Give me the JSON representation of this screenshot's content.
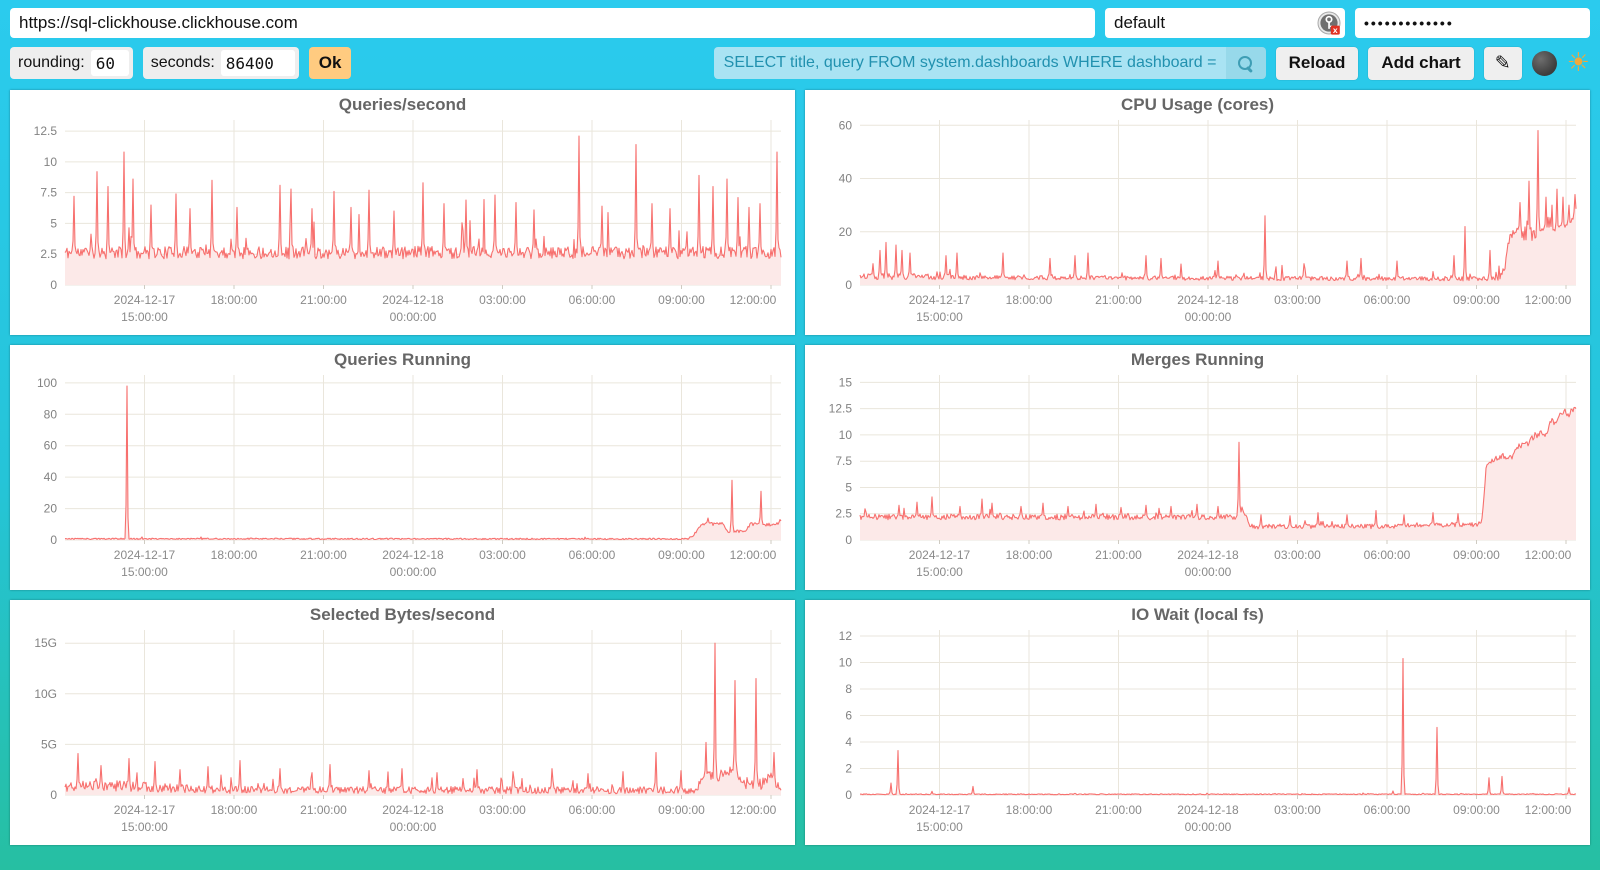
{
  "topbar": {
    "url": "https://sql-clickhouse.clickhouse.com",
    "user": "default",
    "password_masked": "•••••••••••••",
    "user_icon": "key-badge-icon"
  },
  "controls": {
    "rounding_label": "rounding:",
    "rounding_value": "60",
    "seconds_label": "seconds:",
    "seconds_value": "86400",
    "ok_label": "Ok",
    "search_value": "SELECT title, query FROM system.dashboards WHERE dashboard = '",
    "search_icon": "magnifier-icon",
    "reload_label": "Reload",
    "add_chart_label": "Add chart",
    "edit_icon": "✎",
    "dark_toggle_icon": "moon-face-icon",
    "light_toggle_icon": "sun-face-icon"
  },
  "colors": {
    "background_top": "#2BCBEE",
    "background_bottom": "#26BFA2",
    "card_background": "#FFFFFF",
    "ok_button": "#FFCB80",
    "button_background": "#EFEFEF",
    "search_background": "#A9E3F3",
    "search_text": "#2191AF",
    "series_line": "#F7706E",
    "series_fill": "#FCE9E8",
    "title_color": "#666666",
    "axis_text": "#8A8A8A",
    "grid": "#EAE6DC"
  },
  "chart_common": {
    "xticks": [
      {
        "t": 0.111,
        "lines": [
          "2024-12-17",
          "15:00:00"
        ]
      },
      {
        "t": 0.236,
        "lines": [
          "18:00:00"
        ]
      },
      {
        "t": 0.361,
        "lines": [
          "21:00:00"
        ]
      },
      {
        "t": 0.486,
        "lines": [
          "2024-12-18",
          "00:00:00"
        ]
      },
      {
        "t": 0.611,
        "lines": [
          "03:00:00"
        ]
      },
      {
        "t": 0.736,
        "lines": [
          "06:00:00"
        ]
      },
      {
        "t": 0.861,
        "lines": [
          "09:00:00"
        ]
      },
      {
        "t": 0.986,
        "lines": [
          "12:00:00"
        ]
      }
    ]
  },
  "chart_data": [
    {
      "type": "line",
      "title": "Queries/second",
      "ymax": 13.4,
      "ylim": [
        0,
        13.4
      ],
      "yticks": [
        {
          "v": 0,
          "label": "0"
        },
        {
          "v": 2.5,
          "label": "2.5"
        },
        {
          "v": 5,
          "label": "5"
        },
        {
          "v": 7.5,
          "label": "7.5"
        },
        {
          "v": 10,
          "label": "10"
        },
        {
          "v": 12.5,
          "label": "12.5"
        }
      ],
      "series": {
        "seed": 11,
        "min": 1.6,
        "base": [
          [
            0,
            2.55
          ],
          [
            1,
            2.55
          ]
        ],
        "noise": [
          [
            0,
            1.0
          ],
          [
            1,
            1.0
          ]
        ],
        "spike_prob": 0.055,
        "spike_max": 4.8,
        "spikes": [
          [
            0.012,
            7.2
          ],
          [
            0.045,
            9.2
          ],
          [
            0.06,
            8.0
          ],
          [
            0.082,
            10.8
          ],
          [
            0.095,
            8.6
          ],
          [
            0.12,
            6.5
          ],
          [
            0.155,
            7.4
          ],
          [
            0.175,
            6.2
          ],
          [
            0.205,
            8.5
          ],
          [
            0.24,
            6.3
          ],
          [
            0.3,
            8.1
          ],
          [
            0.315,
            7.8
          ],
          [
            0.345,
            6.2
          ],
          [
            0.375,
            7.6
          ],
          [
            0.4,
            6.3
          ],
          [
            0.425,
            7.7
          ],
          [
            0.46,
            6.0
          ],
          [
            0.5,
            8.3
          ],
          [
            0.53,
            6.6
          ],
          [
            0.56,
            6.9
          ],
          [
            0.6,
            7.3
          ],
          [
            0.63,
            6.7
          ],
          [
            0.655,
            6.1
          ],
          [
            0.718,
            12.1
          ],
          [
            0.75,
            6.4
          ],
          [
            0.797,
            11.4
          ],
          [
            0.82,
            6.6
          ],
          [
            0.845,
            6.2
          ],
          [
            0.885,
            8.9
          ],
          [
            0.905,
            8.0
          ],
          [
            0.925,
            8.6
          ],
          [
            0.94,
            7.1
          ],
          [
            0.955,
            6.3
          ],
          [
            0.97,
            6.6
          ],
          [
            0.995,
            10.8
          ]
        ]
      }
    },
    {
      "type": "line",
      "title": "CPU Usage (cores)",
      "ymax": 62,
      "ylim": [
        0,
        62
      ],
      "yticks": [
        {
          "v": 0,
          "label": "0"
        },
        {
          "v": 20,
          "label": "20"
        },
        {
          "v": 40,
          "label": "40"
        },
        {
          "v": 60,
          "label": "60"
        }
      ],
      "series": {
        "seed": 22,
        "min": 0.8,
        "base": [
          [
            0,
            3.2
          ],
          [
            0.2,
            2.6
          ],
          [
            0.55,
            2.4
          ],
          [
            0.89,
            2.2
          ],
          [
            0.9,
            5
          ],
          [
            0.906,
            17
          ],
          [
            0.92,
            20
          ],
          [
            0.935,
            18
          ],
          [
            0.95,
            21
          ],
          [
            0.965,
            19
          ],
          [
            0.98,
            21
          ],
          [
            0.99,
            22
          ],
          [
            1,
            26
          ]
        ],
        "noise": [
          [
            0,
            2.6
          ],
          [
            0.1,
            2.2
          ],
          [
            0.2,
            1.6
          ],
          [
            0.89,
            1.6
          ],
          [
            0.91,
            5
          ],
          [
            1,
            6
          ]
        ],
        "spike_prob": 0.06,
        "spike_max": 7,
        "spikes": [
          [
            0.018,
            8
          ],
          [
            0.028,
            13
          ],
          [
            0.036,
            16
          ],
          [
            0.05,
            15
          ],
          [
            0.058,
            13
          ],
          [
            0.07,
            12
          ],
          [
            0.12,
            11
          ],
          [
            0.135,
            12
          ],
          [
            0.2,
            12
          ],
          [
            0.265,
            10
          ],
          [
            0.3,
            11
          ],
          [
            0.318,
            12
          ],
          [
            0.4,
            11
          ],
          [
            0.42,
            10
          ],
          [
            0.5,
            9
          ],
          [
            0.565,
            26
          ],
          [
            0.62,
            8
          ],
          [
            0.68,
            9
          ],
          [
            0.7,
            10
          ],
          [
            0.75,
            9
          ],
          [
            0.83,
            11
          ],
          [
            0.845,
            22
          ],
          [
            0.88,
            13
          ],
          [
            0.922,
            31
          ],
          [
            0.934,
            39
          ],
          [
            0.947,
            58
          ],
          [
            0.958,
            33
          ],
          [
            0.966,
            30
          ],
          [
            0.974,
            36
          ],
          [
            0.982,
            33
          ],
          [
            0.99,
            30
          ],
          [
            0.999,
            34
          ]
        ]
      }
    },
    {
      "type": "line",
      "title": "Queries Running",
      "ymax": 105,
      "ylim": [
        0,
        105
      ],
      "yticks": [
        {
          "v": 0,
          "label": "0"
        },
        {
          "v": 20,
          "label": "20"
        },
        {
          "v": 40,
          "label": "40"
        },
        {
          "v": 60,
          "label": "60"
        },
        {
          "v": 80,
          "label": "80"
        },
        {
          "v": 100,
          "label": "100"
        }
      ],
      "series": {
        "seed": 33,
        "min": 0.15,
        "base": [
          [
            0,
            0.7
          ],
          [
            0.87,
            0.6
          ],
          [
            0.878,
            3
          ],
          [
            0.887,
            9
          ],
          [
            0.895,
            11
          ],
          [
            0.905,
            10
          ],
          [
            0.917,
            11
          ],
          [
            0.925,
            5
          ],
          [
            0.94,
            5.5
          ],
          [
            0.95,
            6
          ],
          [
            0.958,
            10
          ],
          [
            0.97,
            10
          ],
          [
            0.98,
            9.5
          ],
          [
            0.99,
            10
          ],
          [
            1,
            11
          ]
        ],
        "noise": [
          [
            0,
            0.9
          ],
          [
            0.87,
            0.9
          ],
          [
            0.89,
            2
          ],
          [
            1,
            2
          ]
        ],
        "spike_prob": 0.01,
        "spike_max": 1.5,
        "spikes": [
          [
            0.087,
            98
          ],
          [
            0.898,
            14
          ],
          [
            0.932,
            38
          ],
          [
            0.972,
            31
          ],
          [
            0.998,
            13
          ]
        ]
      }
    },
    {
      "type": "line",
      "title": "Merges Running",
      "ymax": 15.7,
      "ylim": [
        0,
        15.7
      ],
      "yticks": [
        {
          "v": 0,
          "label": "0"
        },
        {
          "v": 2.5,
          "label": "2.5"
        },
        {
          "v": 5,
          "label": "5"
        },
        {
          "v": 7.5,
          "label": "7.5"
        },
        {
          "v": 10,
          "label": "10"
        },
        {
          "v": 12.5,
          "label": "12.5"
        },
        {
          "v": 15,
          "label": "15"
        }
      ],
      "series": {
        "seed": 44,
        "min": 0.9,
        "base": [
          [
            0,
            2.15
          ],
          [
            0.527,
            2.15
          ],
          [
            0.533,
            2.6
          ],
          [
            0.54,
            2.2
          ],
          [
            0.545,
            1.25
          ],
          [
            0.75,
            1.25
          ],
          [
            0.78,
            1.4
          ],
          [
            0.868,
            1.45
          ],
          [
            0.875,
            7.3
          ],
          [
            0.89,
            7.6
          ],
          [
            0.9,
            7.9
          ],
          [
            0.912,
            8.0
          ],
          [
            0.92,
            8.8
          ],
          [
            0.932,
            9.0
          ],
          [
            0.94,
            9.8
          ],
          [
            0.95,
            10.2
          ],
          [
            0.957,
            10.0
          ],
          [
            0.965,
            11.2
          ],
          [
            0.972,
            11.0
          ],
          [
            0.98,
            12.1
          ],
          [
            0.99,
            12.0
          ],
          [
            1,
            12.7
          ]
        ],
        "noise": [
          [
            0,
            0.55
          ],
          [
            0.54,
            0.55
          ],
          [
            0.56,
            0.45
          ],
          [
            0.86,
            0.45
          ],
          [
            0.88,
            0.7
          ],
          [
            1,
            0.7
          ]
        ],
        "spike_prob": 0.035,
        "spike_max": 1.1,
        "spikes": [
          [
            0.055,
            3.3
          ],
          [
            0.08,
            3.6
          ],
          [
            0.1,
            4.1
          ],
          [
            0.14,
            3.2
          ],
          [
            0.17,
            3.9
          ],
          [
            0.185,
            3.5
          ],
          [
            0.225,
            3.2
          ],
          [
            0.255,
            3.5
          ],
          [
            0.29,
            3.2
          ],
          [
            0.33,
            3.4
          ],
          [
            0.365,
            3.1
          ],
          [
            0.4,
            3.3
          ],
          [
            0.435,
            3.2
          ],
          [
            0.47,
            3.4
          ],
          [
            0.5,
            3.2
          ],
          [
            0.53,
            9.3
          ],
          [
            0.56,
            2.4
          ],
          [
            0.6,
            2.3
          ],
          [
            0.64,
            2.6
          ],
          [
            0.68,
            2.4
          ],
          [
            0.72,
            2.8
          ],
          [
            0.76,
            2.4
          ],
          [
            0.8,
            2.6
          ],
          [
            0.835,
            2.5
          ]
        ]
      }
    },
    {
      "type": "line",
      "title": "Selected Bytes/second",
      "ymax": 16.3,
      "ylim": [
        0,
        16.3
      ],
      "unit": "G",
      "yticks": [
        {
          "v": 0,
          "label": "0"
        },
        {
          "v": 5,
          "label": "5G"
        },
        {
          "v": 10,
          "label": "10G"
        },
        {
          "v": 15,
          "label": "15G"
        }
      ],
      "series": {
        "seed": 55,
        "min": 0.06,
        "base": [
          [
            0,
            0.75
          ],
          [
            0.04,
            0.9
          ],
          [
            0.08,
            0.8
          ],
          [
            0.12,
            0.7
          ],
          [
            0.2,
            0.45
          ],
          [
            0.88,
            0.4
          ],
          [
            0.893,
            1.6
          ],
          [
            0.91,
            1.8
          ],
          [
            0.935,
            2.2
          ],
          [
            0.95,
            1.1
          ],
          [
            0.97,
            0.9
          ],
          [
            0.985,
            1.5
          ],
          [
            1,
            0.9
          ]
        ],
        "noise": [
          [
            0,
            1.1
          ],
          [
            0.12,
            1.0
          ],
          [
            0.2,
            0.7
          ],
          [
            0.88,
            0.7
          ],
          [
            0.9,
            1.2
          ],
          [
            1,
            1.2
          ]
        ],
        "spike_prob": 0.08,
        "spike_max": 1.8,
        "spikes": [
          [
            0.018,
            4.1
          ],
          [
            0.05,
            2.9
          ],
          [
            0.09,
            3.6
          ],
          [
            0.125,
            3.3
          ],
          [
            0.16,
            2.5
          ],
          [
            0.2,
            2.8
          ],
          [
            0.245,
            3.4
          ],
          [
            0.3,
            2.6
          ],
          [
            0.345,
            2.2
          ],
          [
            0.37,
            3.0
          ],
          [
            0.425,
            2.4
          ],
          [
            0.47,
            2.6
          ],
          [
            0.52,
            2.2
          ],
          [
            0.575,
            2.5
          ],
          [
            0.625,
            2.3
          ],
          [
            0.68,
            2.6
          ],
          [
            0.73,
            2.1
          ],
          [
            0.78,
            2.3
          ],
          [
            0.825,
            4.2
          ],
          [
            0.86,
            2.4
          ],
          [
            0.895,
            5.2
          ],
          [
            0.908,
            15.0
          ],
          [
            0.936,
            11.3
          ],
          [
            0.965,
            11.5
          ],
          [
            0.99,
            4.2
          ]
        ]
      }
    },
    {
      "type": "line",
      "title": "IO Wait (local fs)",
      "ymax": 12.45,
      "ylim": [
        0,
        12.45
      ],
      "yticks": [
        {
          "v": 0,
          "label": "0"
        },
        {
          "v": 2,
          "label": "2"
        },
        {
          "v": 4,
          "label": "4"
        },
        {
          "v": 6,
          "label": "6"
        },
        {
          "v": 8,
          "label": "8"
        },
        {
          "v": 10,
          "label": "10"
        },
        {
          "v": 12,
          "label": "12"
        }
      ],
      "series": {
        "seed": 66,
        "min": 0.015,
        "base": [
          [
            0,
            0.05
          ],
          [
            1,
            0.05
          ]
        ],
        "noise": [
          [
            0,
            0.07
          ],
          [
            1,
            0.07
          ]
        ],
        "spike_prob": 0.012,
        "spike_max": 0.22,
        "spikes": [
          [
            0.043,
            0.9
          ],
          [
            0.053,
            3.35
          ],
          [
            0.1,
            0.28
          ],
          [
            0.158,
            0.65
          ],
          [
            0.225,
            0.1
          ],
          [
            0.3,
            0.12
          ],
          [
            0.42,
            0.1
          ],
          [
            0.5,
            0.08
          ],
          [
            0.58,
            0.12
          ],
          [
            0.655,
            0.1
          ],
          [
            0.71,
            0.12
          ],
          [
            0.745,
            0.3
          ],
          [
            0.758,
            10.3
          ],
          [
            0.806,
            5.1
          ],
          [
            0.84,
            0.12
          ],
          [
            0.878,
            1.3
          ],
          [
            0.897,
            1.4
          ],
          [
            0.94,
            0.12
          ],
          [
            0.99,
            0.55
          ]
        ]
      }
    }
  ]
}
